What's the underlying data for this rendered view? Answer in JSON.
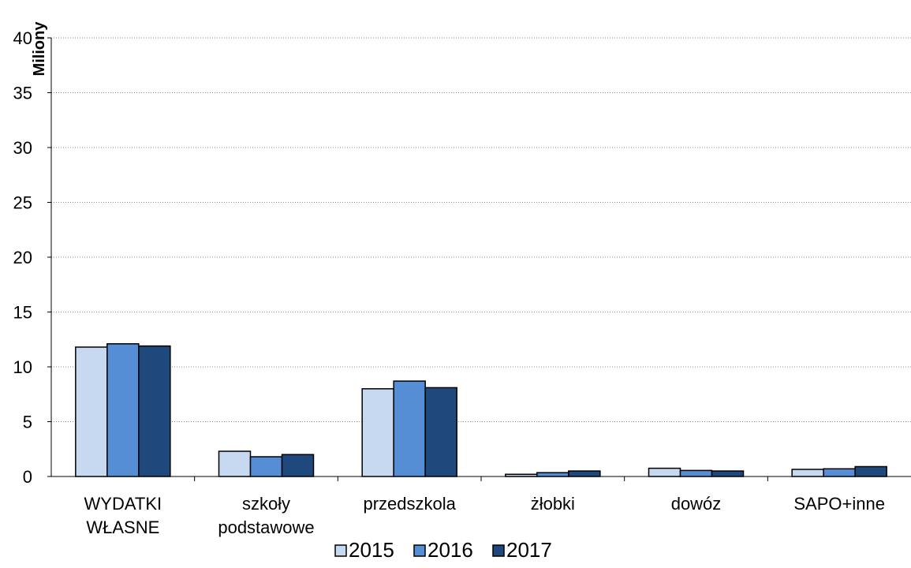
{
  "chart_data": {
    "type": "bar",
    "title": "",
    "xlabel": "",
    "ylabel": "Miliony",
    "ylim": [
      0,
      40
    ],
    "yticks": [
      0,
      5,
      10,
      15,
      20,
      25,
      30,
      35,
      40
    ],
    "grid": "horizontal dotted",
    "legend_position": "bottom",
    "categories": [
      [
        "WYDATKI",
        "WŁASNE"
      ],
      [
        "szkoły",
        "podstawowe"
      ],
      [
        "przedszkola"
      ],
      [
        "żłobki"
      ],
      [
        "dowóz"
      ],
      [
        "SAPO+inne"
      ]
    ],
    "series": [
      {
        "name": "2015",
        "color": "#c6d9f1",
        "values": [
          11.8,
          2.3,
          8.0,
          0.2,
          0.75,
          0.65
        ]
      },
      {
        "name": "2016",
        "color": "#558ed5",
        "values": [
          12.1,
          1.8,
          8.7,
          0.35,
          0.55,
          0.7
        ]
      },
      {
        "name": "2017",
        "color": "#1f497d",
        "values": [
          11.9,
          2.0,
          8.1,
          0.5,
          0.5,
          0.9
        ]
      }
    ]
  }
}
